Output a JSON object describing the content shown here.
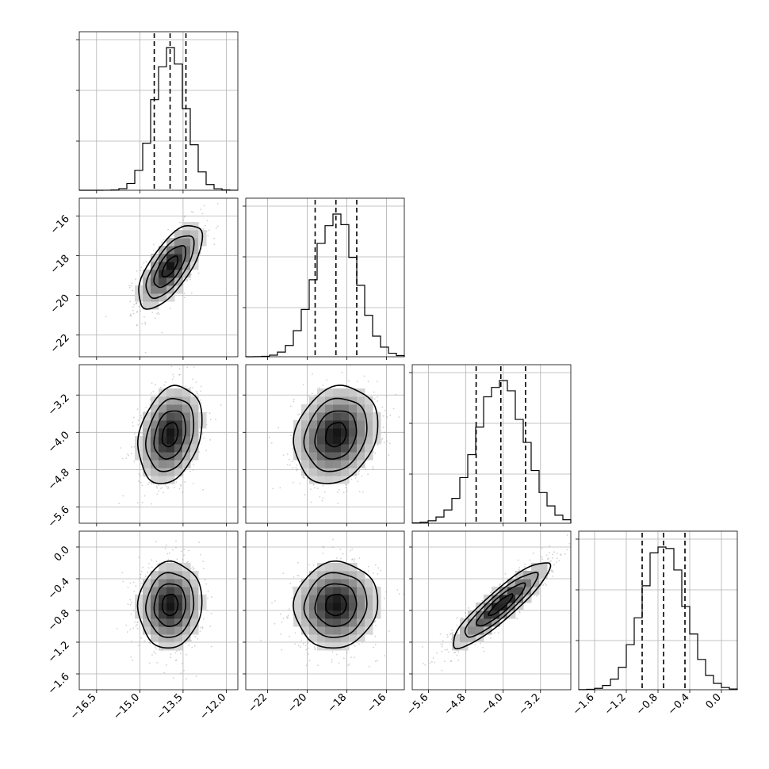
{
  "chart_data": {
    "type": "corner",
    "title": "",
    "grid": true,
    "quantiles": [
      0.16,
      0.5,
      0.84
    ],
    "parameters": [
      {
        "name": "",
        "mean": -13.95,
        "sd": 0.55,
        "range": [
          -17.1,
          -11.6
        ],
        "ticks": [
          -16.5,
          -15.0,
          -13.5,
          -12.0
        ],
        "tick_labels": [
          "−16.5",
          "−15.0",
          "−13.5",
          "−12.0"
        ],
        "quantile_values": [
          -14.5,
          -13.95,
          -13.4
        ]
      },
      {
        "name": "",
        "mean": -18.55,
        "sd": 1.05,
        "range": [
          -23.1,
          -15.1
        ],
        "ticks": [
          -22,
          -20,
          -18,
          -16
        ],
        "tick_labels": [
          "−22",
          "−20",
          "−18",
          "−16"
        ],
        "quantile_values": [
          -19.6,
          -18.55,
          -17.5
        ]
      },
      {
        "name": "",
        "mean": -4.05,
        "sd": 0.52,
        "range": [
          -5.95,
          -2.55
        ],
        "ticks": [
          -5.6,
          -4.8,
          -4.0,
          -3.2
        ],
        "tick_labels": [
          "−5.6",
          "−4.8",
          "−4.0",
          "−3.2"
        ],
        "quantile_values": [
          -4.58,
          -4.05,
          -3.52
        ]
      },
      {
        "name": "",
        "mean": -0.73,
        "sd": 0.27,
        "range": [
          -1.8,
          0.2
        ],
        "ticks": [
          -1.6,
          -1.2,
          -0.8,
          -0.4,
          0.0
        ],
        "tick_labels": [
          "−1.6",
          "−1.2",
          "−0.8",
          "−0.4",
          "0.0"
        ],
        "quantile_values": [
          -1.0,
          -0.73,
          -0.46
        ]
      }
    ],
    "correlations": [
      [
        1.0,
        0.68,
        0.25,
        0.05
      ],
      [
        0.68,
        1.0,
        0.18,
        0.05
      ],
      [
        0.25,
        0.18,
        1.0,
        0.9
      ],
      [
        0.05,
        0.05,
        0.9,
        1.0
      ]
    ],
    "contour_levels_sigma": [
      0.5,
      1.0,
      1.5,
      2.0
    ],
    "colors": {
      "density": "#000000",
      "points": "#9a9a9a",
      "grid": "#b0b0b0"
    }
  }
}
